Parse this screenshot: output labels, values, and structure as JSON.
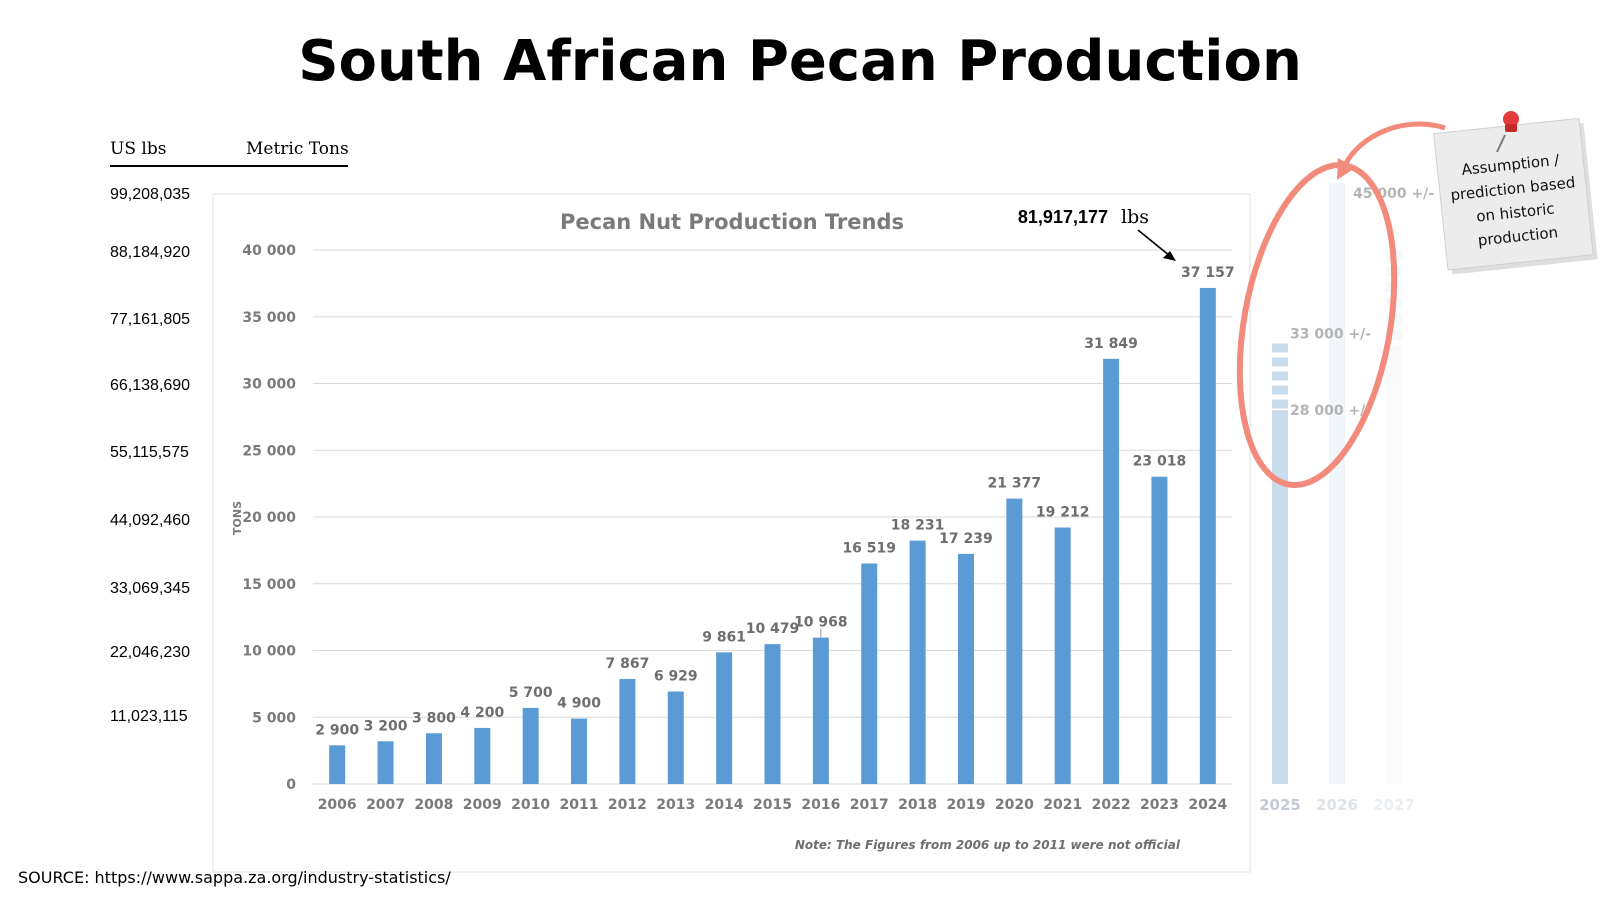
{
  "title": "South African Pecan Production",
  "units_header": {
    "left": "US  lbs",
    "right": "Metric Tons"
  },
  "lbs_axis": [
    "99,208,035",
    "88,184,920",
    "77,161,805",
    "66,138,690",
    "55,115,575",
    "44,092,460",
    "33,069,345",
    "22,046,230",
    "11,023,115"
  ],
  "callout": {
    "value": "81,917,177",
    "unit": "lbs"
  },
  "sticky_note": {
    "lines": [
      "Assumption /",
      "prediction based",
      "on historic",
      "production"
    ]
  },
  "source": "SOURCE: https://www.sappa.za.org/industry-statistics/",
  "colors": {
    "bar": "#5b9bd5",
    "projection": "#c9dcee",
    "circle": "#f28b7b",
    "grid": "#d9d9d9"
  },
  "chart_data": {
    "type": "bar",
    "title": "Pecan Nut Production Trends",
    "ylabel": "TONS",
    "xlabel": "",
    "ylim": [
      0,
      40000
    ],
    "y_ticks": [
      "0",
      "5 000",
      "10 000",
      "15 000",
      "20 000",
      "25 000",
      "30 000",
      "35 000",
      "40 000"
    ],
    "y_tick_values": [
      0,
      5000,
      10000,
      15000,
      20000,
      25000,
      30000,
      35000,
      40000
    ],
    "grid": true,
    "categories": [
      "2006",
      "2007",
      "2008",
      "2009",
      "2010",
      "2011",
      "2012",
      "2013",
      "2014",
      "2015",
      "2016",
      "2017",
      "2018",
      "2019",
      "2020",
      "2021",
      "2022",
      "2023",
      "2024"
    ],
    "values": [
      2900,
      3200,
      3800,
      4200,
      5700,
      4900,
      7867,
      6929,
      9861,
      10479,
      10968,
      16519,
      18231,
      17239,
      21377,
      19212,
      31849,
      23018,
      37157
    ],
    "data_labels": [
      "2 900",
      "3 200",
      "3 800",
      "4 200",
      "5 700",
      "4 900",
      "7 867",
      "6 929",
      "9 861",
      "10 479",
      "10 968",
      "16 519",
      "18 231",
      "17 239",
      "21 377",
      "19 212",
      "31 849",
      "23 018",
      "37 157"
    ],
    "note": "Note: The Figures from 2006 up to 2011 were not official",
    "projections": [
      {
        "year": "2025",
        "values": [
          28000,
          33000
        ],
        "labels": [
          "28 000 +/-",
          "33 000 +/-"
        ]
      },
      {
        "year": "2026",
        "values": [
          45000
        ],
        "labels": [
          "45 000 +/-"
        ]
      },
      {
        "year": "2027",
        "values": [
          40000
        ],
        "labels": []
      }
    ]
  }
}
